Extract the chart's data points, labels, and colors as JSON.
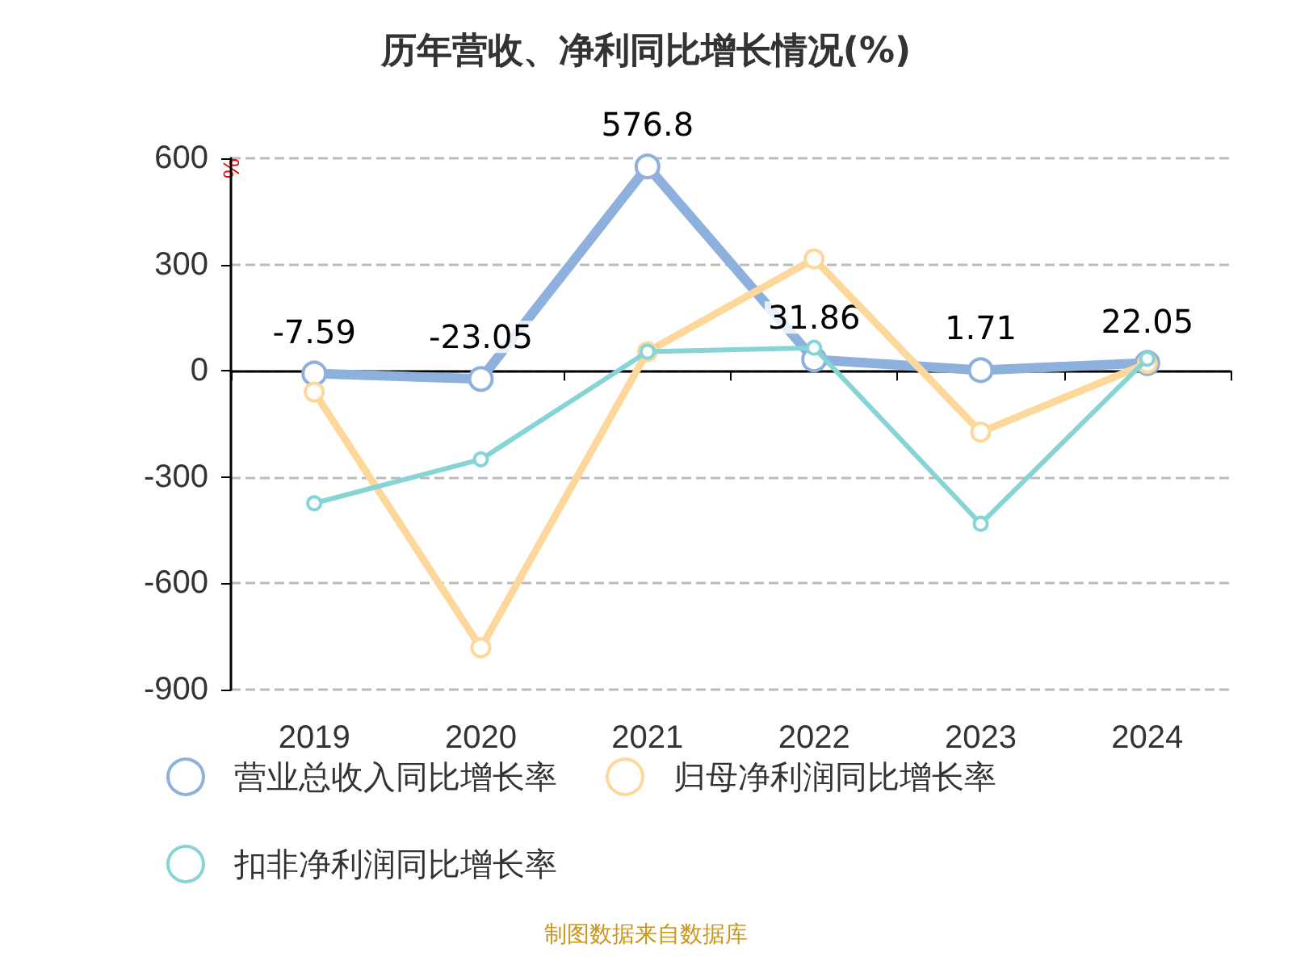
{
  "chart_data": {
    "type": "line",
    "title": "历年营收、净利同比增长情况(%)",
    "ylabel": "%",
    "categories": [
      "2019",
      "2020",
      "2021",
      "2022",
      "2023",
      "2024"
    ],
    "series": [
      {
        "name": "营业总收入同比增长率",
        "color": "#8eb0dc",
        "values": [
          -7.59,
          -23.05,
          576.8,
          31.86,
          1.71,
          22.05
        ],
        "value_labels": [
          "-7.59",
          "-23.05",
          "576.8",
          "31.86",
          "1.71",
          "22.05"
        ]
      },
      {
        "name": "归母净利润同比增长率",
        "color": "#fdd89a",
        "values": [
          -60,
          -782,
          54,
          316,
          -173,
          21
        ]
      },
      {
        "name": "扣非净利润同比增长率",
        "color": "#86d4d6",
        "values": [
          -374,
          -250,
          54,
          65,
          -432,
          34
        ]
      }
    ],
    "ylim": [
      -900,
      600
    ],
    "yticks": [
      -900,
      -600,
      -300,
      0,
      300,
      600
    ],
    "grid": "y",
    "legend": "bottom",
    "marker": "circle",
    "annotations": [
      "制图数据来自数据库"
    ]
  }
}
